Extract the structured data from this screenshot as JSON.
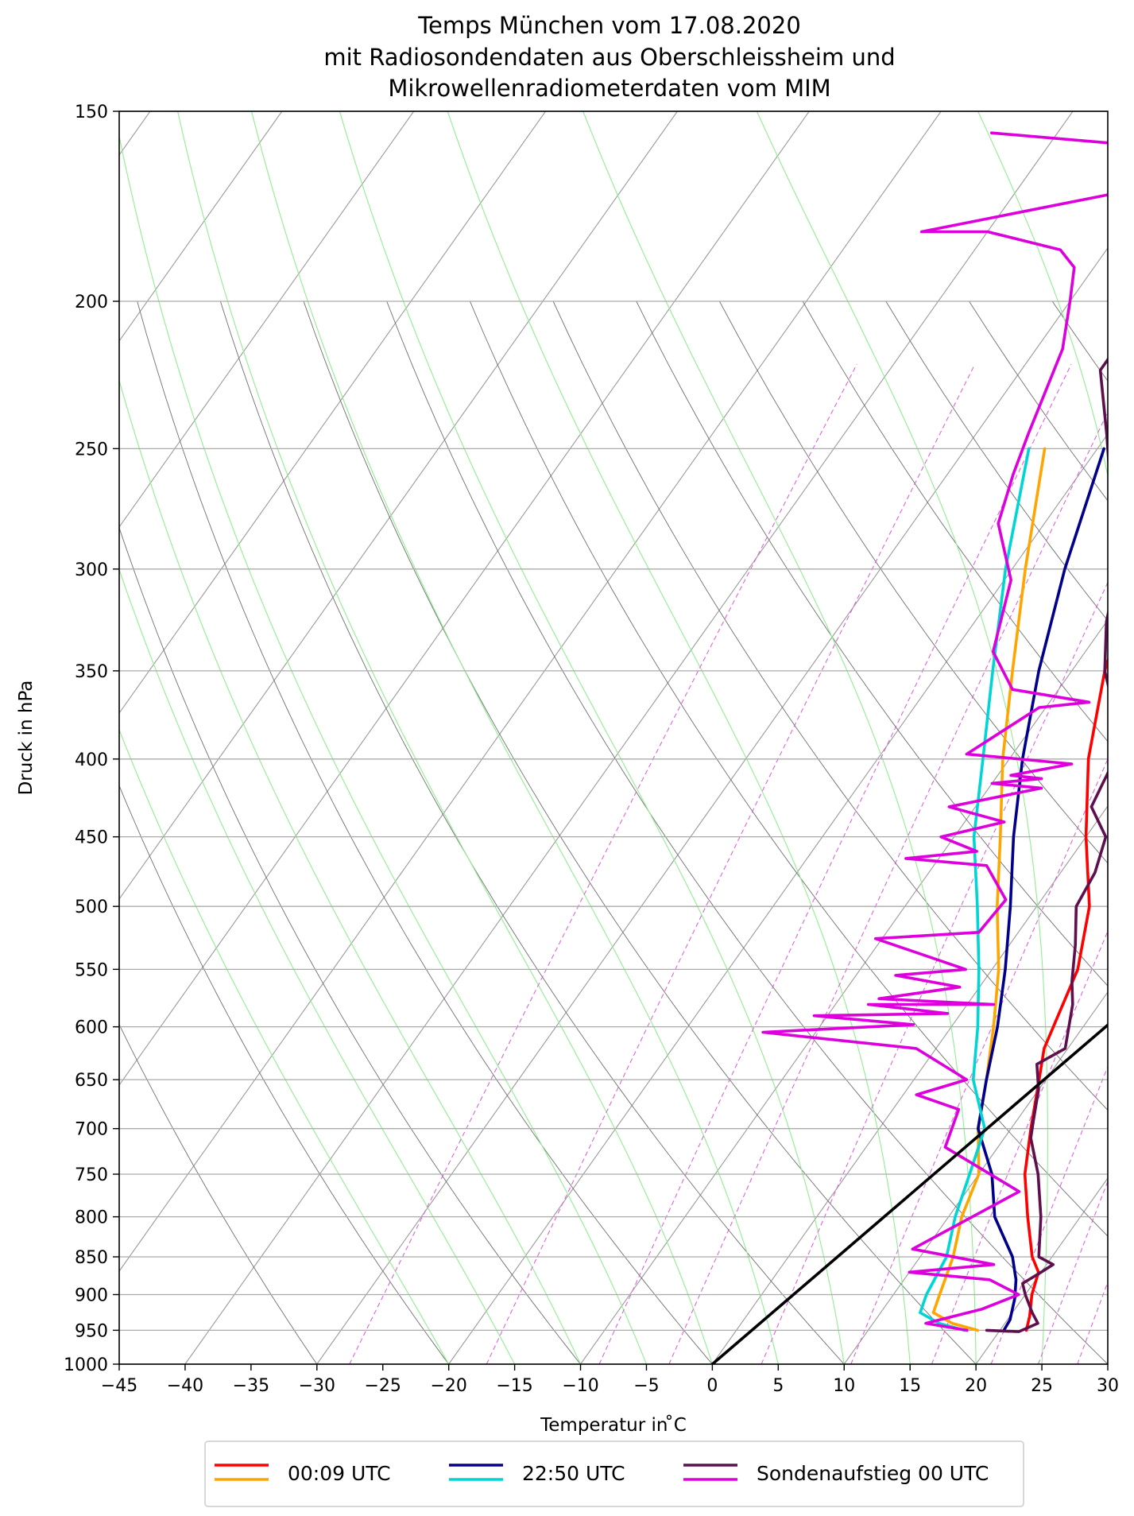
{
  "chart_data": {
    "type": "line",
    "title_lines": [
      "Temps München vom 17.08.2020",
      "mit Radiosondendaten aus Oberschleissheim und",
      "Mikrowellenradiometerdaten vom MIM"
    ],
    "xlabel": "Temperatur in  ̊C",
    "ylabel": "Druck in hPa",
    "xlim": [
      -45,
      30
    ],
    "ylim": [
      1000,
      150
    ],
    "y_scale": "log",
    "x_ticks": [
      -45,
      -40,
      -35,
      -30,
      -25,
      -20,
      -15,
      -10,
      -5,
      0,
      5,
      10,
      15,
      20,
      25,
      30
    ],
    "x_tick_labels": [
      "−45",
      "−40",
      "−35",
      "−30",
      "−25",
      "−20",
      "−15",
      "−10",
      "−5",
      "0",
      "5",
      "10",
      "15",
      "20",
      "25",
      "30"
    ],
    "y_ticks": [
      150,
      200,
      250,
      300,
      350,
      400,
      450,
      500,
      550,
      600,
      650,
      700,
      750,
      800,
      850,
      900,
      950,
      1000
    ],
    "y_tick_labels": [
      "150",
      "200",
      "250",
      "300",
      "350",
      "400",
      "450",
      "500",
      "550",
      "600",
      "650",
      "700",
      "750",
      "800",
      "850",
      "900",
      "950",
      "1000"
    ],
    "grid": true,
    "legend_position": "bottom-center",
    "legend": [
      {
        "label": "00:09 UTC",
        "colors": [
          "#ff0000",
          "#ffa500"
        ]
      },
      {
        "label": "22:50 UTC",
        "colors": [
          "#00008b",
          "#00d5d5"
        ]
      },
      {
        "label": "Sondenaufstieg 00 UTC",
        "colors": [
          "#5e0f4e",
          "#dd00dd"
        ]
      }
    ],
    "series": [
      {
        "color": "#ff0000",
        "points": [
          [
            22.0,
            950
          ],
          [
            21.5,
            930
          ],
          [
            20.5,
            900
          ],
          [
            19.8,
            870
          ],
          [
            18.5,
            850
          ],
          [
            16,
            800
          ],
          [
            13.5,
            750
          ],
          [
            11.5,
            700
          ],
          [
            9.5,
            650
          ],
          [
            8.2,
            620
          ],
          [
            6.5,
            550
          ],
          [
            4,
            500
          ],
          [
            0,
            450
          ],
          [
            -4,
            400
          ],
          [
            -7.5,
            350
          ],
          [
            -10.5,
            300
          ],
          [
            -14,
            250
          ]
        ]
      },
      {
        "color": "#ffa500",
        "points": [
          [
            18.3,
            950
          ],
          [
            16,
            940
          ],
          [
            14,
            925
          ],
          [
            13.5,
            900
          ],
          [
            12.5,
            850
          ],
          [
            11,
            800
          ],
          [
            10,
            750
          ],
          [
            7.5,
            700
          ],
          [
            5.5,
            650
          ],
          [
            3.2,
            600
          ],
          [
            0.5,
            550
          ],
          [
            -3,
            500
          ],
          [
            -6.5,
            450
          ],
          [
            -10.5,
            400
          ],
          [
            -14.5,
            350
          ],
          [
            -19,
            300
          ],
          [
            -24,
            250
          ]
        ]
      },
      {
        "color": "#00008b",
        "points": [
          [
            20.3,
            950
          ],
          [
            20.2,
            935
          ],
          [
            19.4,
            905
          ],
          [
            18.5,
            880
          ],
          [
            17,
            850
          ],
          [
            13.5,
            800
          ],
          [
            11,
            750
          ],
          [
            7.5,
            700
          ],
          [
            5.5,
            650
          ],
          [
            3.5,
            600
          ],
          [
            1,
            550
          ],
          [
            -2,
            500
          ],
          [
            -5.5,
            450
          ],
          [
            -9,
            400
          ],
          [
            -12.5,
            350
          ],
          [
            -16,
            300
          ],
          [
            -19.5,
            250
          ]
        ]
      },
      {
        "color": "#00d5d5",
        "points": [
          [
            17.3,
            950
          ],
          [
            15,
            940
          ],
          [
            13,
            925
          ],
          [
            12.5,
            900
          ],
          [
            12,
            850
          ],
          [
            10.5,
            800
          ],
          [
            9.3,
            750
          ],
          [
            8,
            700
          ],
          [
            4.5,
            650
          ],
          [
            2,
            600
          ],
          [
            -1,
            550
          ],
          [
            -4.5,
            500
          ],
          [
            -8.5,
            450
          ],
          [
            -12,
            400
          ],
          [
            -16,
            350
          ],
          [
            -20.5,
            300
          ],
          [
            -25.2,
            250
          ]
        ]
      },
      {
        "color": "#5e0f4e",
        "points": [
          [
            19,
            950
          ],
          [
            21.5,
            952
          ],
          [
            22.5,
            940
          ],
          [
            21.5,
            925
          ],
          [
            20,
            900
          ],
          [
            19.2,
            885
          ],
          [
            20,
            870
          ],
          [
            20.5,
            860
          ],
          [
            19,
            850
          ],
          [
            17,
            800
          ],
          [
            14.5,
            750
          ],
          [
            12,
            710
          ],
          [
            11.2,
            690
          ],
          [
            10,
            660
          ],
          [
            8.5,
            635
          ],
          [
            9.8,
            620
          ],
          [
            8,
            580
          ],
          [
            6.7,
            560
          ],
          [
            5,
            530
          ],
          [
            3,
            500
          ],
          [
            2.6,
            475
          ],
          [
            1.5,
            450
          ],
          [
            -1.2,
            430
          ],
          [
            -1.6,
            415
          ],
          [
            -2,
            400
          ],
          [
            -4,
            380
          ],
          [
            -5.5,
            365
          ],
          [
            -7.5,
            350
          ],
          [
            -10,
            325
          ],
          [
            -12,
            300
          ],
          [
            -15.5,
            275
          ],
          [
            -20,
            245
          ],
          [
            -24,
            222
          ],
          [
            -24,
            210
          ],
          [
            -24.3,
            205
          ],
          [
            -23.5,
            198
          ],
          [
            -23.5,
            195
          ],
          [
            -16,
            180
          ],
          [
            -16,
            175
          ],
          [
            -15.5,
            168
          ],
          [
            -9,
            155
          ]
        ]
      },
      {
        "color": "#dd00dd",
        "points": [
          [
            17.5,
            950
          ],
          [
            14,
            940
          ],
          [
            17.5,
            920
          ],
          [
            19.5,
            900
          ],
          [
            16.5,
            880
          ],
          [
            10,
            870
          ],
          [
            16,
            860
          ],
          [
            9,
            840
          ],
          [
            14,
            770
          ],
          [
            6,
            720
          ],
          [
            5,
            680
          ],
          [
            1,
            665
          ],
          [
            4,
            650
          ],
          [
            -1.5,
            620
          ],
          [
            -14,
            605
          ],
          [
            -3,
            598
          ],
          [
            -11,
            590
          ],
          [
            -1,
            588
          ],
          [
            -7.5,
            580
          ],
          [
            2,
            580
          ],
          [
            -7,
            575
          ],
          [
            -1.5,
            565
          ],
          [
            -7,
            555
          ],
          [
            -2,
            550
          ],
          [
            -10.5,
            525
          ],
          [
            -3,
            520
          ],
          [
            -2.7,
            495
          ],
          [
            -6,
            470
          ],
          [
            -12.5,
            465
          ],
          [
            -7.5,
            460
          ],
          [
            -11,
            450
          ],
          [
            -7,
            440
          ],
          [
            -12,
            430
          ],
          [
            -6,
            418
          ],
          [
            -10,
            415
          ],
          [
            -6.5,
            412
          ],
          [
            -9,
            410
          ],
          [
            -5,
            403
          ],
          [
            -13.5,
            397
          ],
          [
            -10.5,
            370
          ],
          [
            -7,
            367
          ],
          [
            -13.5,
            360
          ],
          [
            -17,
            340
          ],
          [
            -19.5,
            305
          ],
          [
            -23.5,
            280
          ],
          [
            -25,
            260
          ],
          [
            -26,
            245
          ],
          [
            -28,
            215
          ],
          [
            -30,
            200
          ],
          [
            -31.5,
            190
          ],
          [
            -33.5,
            185
          ],
          [
            -40,
            180
          ],
          [
            -45,
            180
          ],
          [
            -30,
            168
          ],
          [
            -29,
            162
          ],
          [
            -33,
            158
          ],
          [
            -45,
            155
          ]
        ]
      },
      {
        "color": "#000000",
        "points": [
          [
            0,
            1000
          ],
          [
            30,
            270
          ]
        ]
      }
    ]
  }
}
